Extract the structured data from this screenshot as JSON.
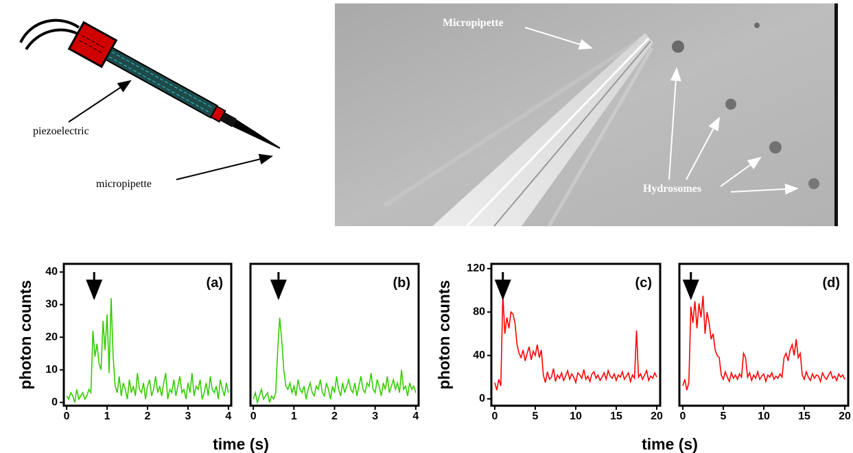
{
  "schematic": {
    "labels": [
      "piezoelectric",
      "micropipette"
    ]
  },
  "micrograph": {
    "labels": [
      "Micropipette",
      "Hydrosomes"
    ]
  },
  "chart_data": [
    {
      "type": "line",
      "label": "(a)",
      "x_label": "time (s)",
      "y_label": "photon counts",
      "arrow_x": 0.68,
      "xlim": [
        -0.07,
        4.07
      ],
      "ylim": [
        -1,
        42.5
      ],
      "xticks": [
        0,
        1,
        2,
        3,
        4
      ],
      "yticks": [
        0,
        10,
        20,
        30,
        40
      ],
      "x": [
        0,
        0.05,
        0.1,
        0.15,
        0.2,
        0.25,
        0.3,
        0.35,
        0.4,
        0.45,
        0.5,
        0.55,
        0.6,
        0.65,
        0.7,
        0.75,
        0.8,
        0.85,
        0.9,
        0.95,
        1,
        1.05,
        1.1,
        1.15,
        1.2,
        1.25,
        1.3,
        1.35,
        1.4,
        1.45,
        1.5,
        1.55,
        1.6,
        1.65,
        1.7,
        1.75,
        1.8,
        1.85,
        1.9,
        1.95,
        2,
        2.05,
        2.1,
        2.15,
        2.2,
        2.25,
        2.3,
        2.35,
        2.4,
        2.45,
        2.5,
        2.55,
        2.6,
        2.65,
        2.7,
        2.75,
        2.8,
        2.85,
        2.9,
        2.95,
        3,
        3.05,
        3.1,
        3.15,
        3.2,
        3.25,
        3.3,
        3.35,
        3.4,
        3.45,
        3.5,
        3.55,
        3.6,
        3.65,
        3.7,
        3.75,
        3.8,
        3.85,
        3.9,
        3.95,
        4
      ],
      "series": [
        {
          "color": "#33cc00",
          "values": [
            2,
            1,
            3,
            2,
            0,
            4,
            1,
            2,
            3,
            1,
            2,
            4,
            3,
            22,
            14,
            18,
            12,
            10,
            25,
            16,
            27,
            9,
            32,
            14,
            5,
            3,
            8,
            2,
            6,
            4,
            1,
            7,
            3,
            5,
            2,
            9,
            4,
            3,
            6,
            1,
            5,
            7,
            2,
            4,
            8,
            3,
            5,
            2,
            6,
            9,
            1,
            4,
            3,
            7,
            2,
            5,
            8,
            3,
            4,
            1,
            6,
            3,
            9,
            2,
            5,
            4,
            7,
            1,
            3,
            6,
            2,
            8,
            4,
            3,
            5,
            1,
            7,
            4,
            2,
            6,
            3
          ]
        }
      ]
    },
    {
      "type": "line",
      "label": "(b)",
      "arrow_x": 0.62,
      "xlim": [
        -0.07,
        4.07
      ],
      "ylim": [
        -1,
        42.5
      ],
      "xticks": [
        0,
        1,
        2,
        3,
        4
      ],
      "x": [
        0,
        0.05,
        0.1,
        0.15,
        0.2,
        0.25,
        0.3,
        0.35,
        0.4,
        0.45,
        0.5,
        0.55,
        0.6,
        0.65,
        0.7,
        0.75,
        0.8,
        0.85,
        0.9,
        0.95,
        1,
        1.05,
        1.1,
        1.15,
        1.2,
        1.25,
        1.3,
        1.35,
        1.4,
        1.45,
        1.5,
        1.55,
        1.6,
        1.65,
        1.7,
        1.75,
        1.8,
        1.85,
        1.9,
        1.95,
        2,
        2.05,
        2.1,
        2.15,
        2.2,
        2.25,
        2.3,
        2.35,
        2.4,
        2.45,
        2.5,
        2.55,
        2.6,
        2.65,
        2.7,
        2.75,
        2.8,
        2.85,
        2.9,
        2.95,
        3,
        3.05,
        3.1,
        3.15,
        3.2,
        3.25,
        3.3,
        3.35,
        3.4,
        3.45,
        3.5,
        3.55,
        3.6,
        3.65,
        3.7,
        3.75,
        3.8,
        3.85,
        3.9,
        3.95,
        4
      ],
      "series": [
        {
          "color": "#33cc00",
          "values": [
            1,
            3,
            0,
            2,
            4,
            1,
            2,
            3,
            0,
            2,
            1,
            3,
            16,
            26,
            19,
            10,
            5,
            4,
            6,
            3,
            5,
            2,
            7,
            4,
            3,
            5,
            1,
            4,
            6,
            3,
            2,
            5,
            4,
            7,
            3,
            2,
            6,
            4,
            1,
            5,
            3,
            8,
            4,
            2,
            6,
            3,
            5,
            7,
            4,
            3,
            6,
            2,
            5,
            8,
            4,
            3,
            6,
            5,
            9,
            4,
            3,
            7,
            5,
            2,
            6,
            4,
            8,
            3,
            5,
            7,
            4,
            6,
            3,
            10,
            4,
            5,
            2,
            6,
            4,
            5,
            3
          ]
        }
      ]
    },
    {
      "type": "line",
      "label": "(c)",
      "x_label": "time (s)",
      "y_label": "photon counts",
      "arrow_x": 1.0,
      "xlim": [
        -0.42,
        20.42
      ],
      "ylim": [
        -6.3,
        124.4
      ],
      "xticks": [
        0,
        5,
        10,
        15,
        20
      ],
      "yticks": [
        0,
        40,
        80,
        120
      ],
      "x": [
        0,
        0.25,
        0.5,
        0.75,
        1,
        1.25,
        1.5,
        1.75,
        2,
        2.25,
        2.5,
        2.75,
        3,
        3.25,
        3.5,
        3.75,
        4,
        4.25,
        4.5,
        4.75,
        5,
        5.25,
        5.5,
        5.75,
        6,
        6.25,
        6.5,
        6.75,
        7,
        7.25,
        7.5,
        7.75,
        8,
        8.25,
        8.5,
        8.75,
        9,
        9.25,
        9.5,
        9.75,
        10,
        10.25,
        10.5,
        10.75,
        11,
        11.25,
        11.5,
        11.75,
        12,
        12.25,
        12.5,
        12.75,
        13,
        13.25,
        13.5,
        13.75,
        14,
        14.25,
        14.5,
        14.75,
        15,
        15.25,
        15.5,
        15.75,
        16,
        16.25,
        16.5,
        16.75,
        17,
        17.25,
        17.5,
        17.75,
        18,
        18.25,
        18.5,
        18.75,
        19,
        19.25,
        19.5,
        19.75,
        20
      ],
      "series": [
        {
          "color": "#ff0000",
          "values": [
            15,
            8,
            18,
            12,
            96,
            60,
            75,
            65,
            80,
            78,
            70,
            50,
            42,
            38,
            45,
            35,
            42,
            48,
            36,
            44,
            40,
            50,
            38,
            45,
            22,
            15,
            25,
            18,
            20,
            28,
            16,
            22,
            19,
            24,
            17,
            21,
            26,
            18,
            23,
            20,
            15,
            24,
            22,
            19,
            27,
            18,
            21,
            16,
            23,
            25,
            19,
            22,
            17,
            20,
            24,
            18,
            26,
            21,
            19,
            23,
            17,
            22,
            20,
            25,
            18,
            21,
            24,
            16,
            22,
            19,
            63,
            20,
            23,
            18,
            22,
            26,
            17,
            21,
            19,
            24,
            20
          ]
        }
      ]
    },
    {
      "type": "line",
      "label": "(d)",
      "arrow_x": 1.0,
      "xlim": [
        -0.42,
        20.42
      ],
      "ylim": [
        -6.3,
        124.4
      ],
      "xticks": [
        0,
        5,
        10,
        15,
        20
      ],
      "x": [
        0,
        0.25,
        0.5,
        0.75,
        1,
        1.25,
        1.5,
        1.75,
        2,
        2.25,
        2.5,
        2.75,
        3,
        3.25,
        3.5,
        3.75,
        4,
        4.25,
        4.5,
        4.75,
        5,
        5.25,
        5.5,
        5.75,
        6,
        6.25,
        6.5,
        6.75,
        7,
        7.25,
        7.5,
        7.75,
        8,
        8.25,
        8.5,
        8.75,
        9,
        9.25,
        9.5,
        9.75,
        10,
        10.25,
        10.5,
        10.75,
        11,
        11.25,
        11.5,
        11.75,
        12,
        12.25,
        12.5,
        12.75,
        13,
        13.25,
        13.5,
        13.75,
        14,
        14.25,
        14.5,
        14.75,
        15,
        15.25,
        15.5,
        15.75,
        16,
        16.25,
        16.5,
        16.75,
        17,
        17.25,
        17.5,
        17.75,
        18,
        18.25,
        18.5,
        18.75,
        19,
        19.25,
        19.5,
        19.75,
        20
      ],
      "series": [
        {
          "color": "#ff0000",
          "values": [
            12,
            18,
            8,
            15,
            85,
            70,
            90,
            65,
            88,
            75,
            95,
            60,
            80,
            70,
            55,
            60,
            45,
            40,
            38,
            22,
            18,
            25,
            20,
            16,
            24,
            19,
            22,
            18,
            23,
            20,
            42,
            38,
            20,
            24,
            17,
            22,
            19,
            25,
            18,
            21,
            23,
            16,
            22,
            20,
            24,
            18,
            21,
            19,
            23,
            20,
            38,
            42,
            35,
            45,
            50,
            40,
            55,
            38,
            42,
            22,
            18,
            25,
            20,
            17,
            23,
            19,
            22,
            21,
            16,
            24,
            20,
            18,
            22,
            25,
            19,
            21,
            17,
            23,
            20,
            22,
            18
          ]
        }
      ]
    }
  ]
}
